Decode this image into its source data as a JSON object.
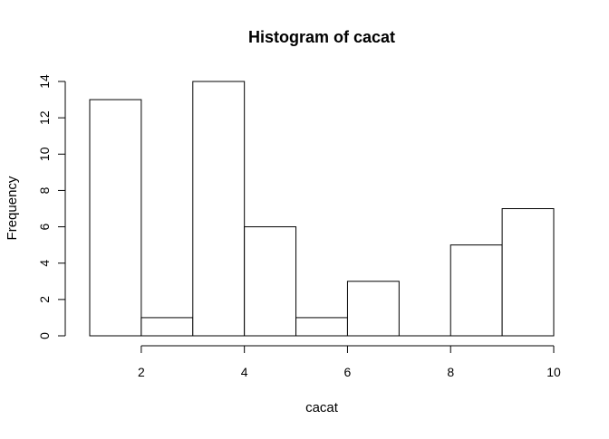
{
  "chart_data": {
    "type": "bar",
    "subtype": "histogram",
    "title": "Histogram of cacat",
    "xlabel": "cacat",
    "ylabel": "Frequency",
    "bin_edges": [
      1,
      2,
      3,
      4,
      5,
      6,
      7,
      8,
      9,
      10
    ],
    "values": [
      13,
      1,
      14,
      6,
      1,
      3,
      0,
      5,
      7
    ],
    "xlim": [
      1,
      10
    ],
    "ylim": [
      0,
      14
    ],
    "x_ticks": [
      2,
      4,
      6,
      8,
      10
    ],
    "y_ticks": [
      0,
      2,
      4,
      6,
      8,
      10,
      12,
      14
    ],
    "grid": false,
    "legend": "none",
    "colors": {
      "bar_fill": "#ffffff",
      "bar_stroke": "#000000",
      "axis": "#000000"
    }
  }
}
